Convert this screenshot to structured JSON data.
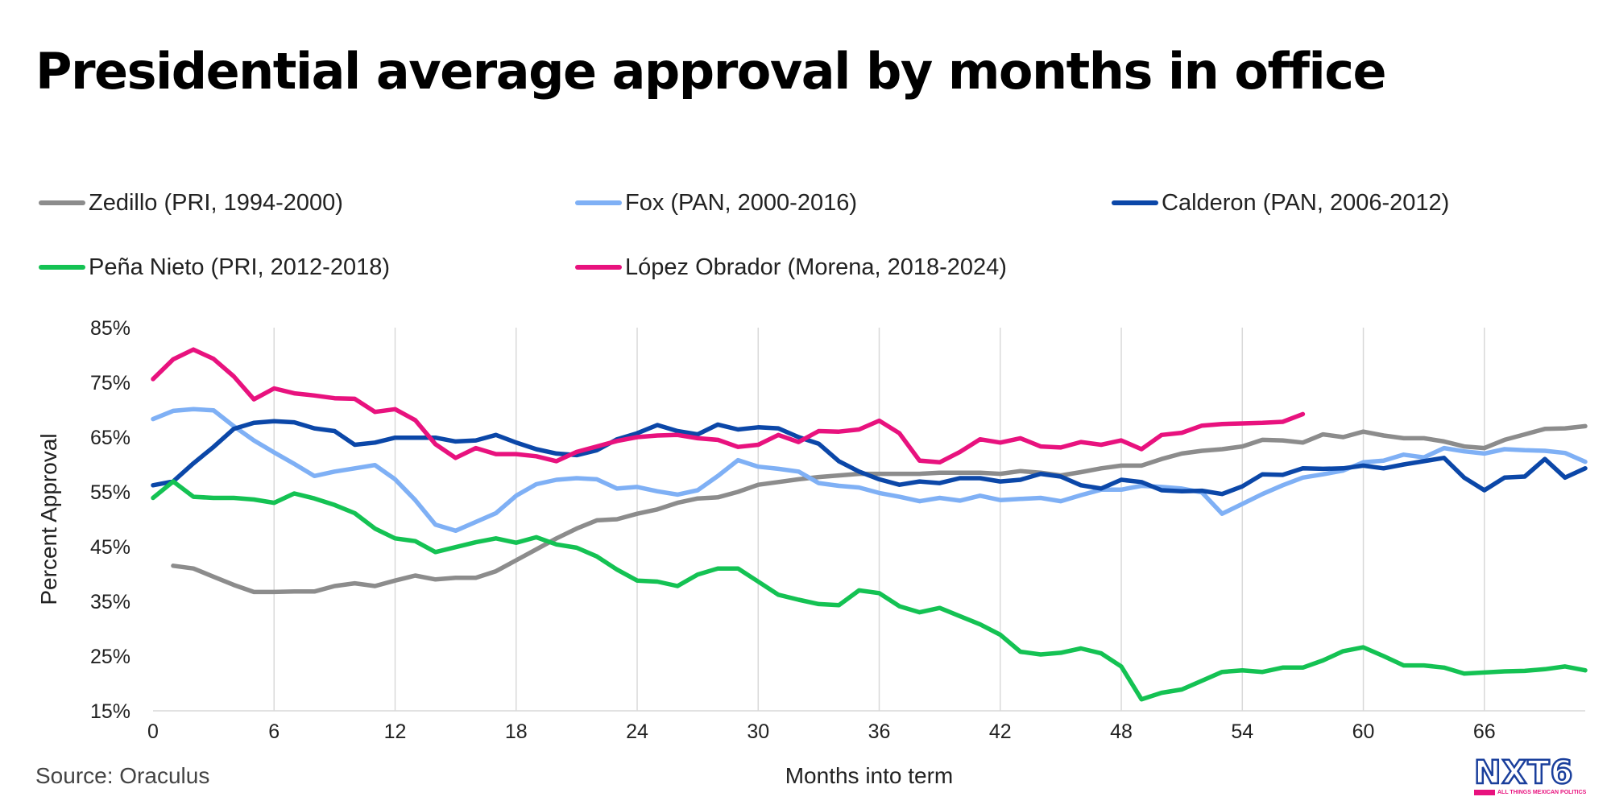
{
  "title": "Presidential average approval by months in office",
  "source": "Source: Oraculus",
  "logo": {
    "name": "NXT6",
    "tagline": "ALL THINGS MEXICAN POLITICS"
  },
  "colors": {
    "zedillo": "#8c8c8c",
    "fox": "#7fb0f5",
    "calderon": "#0b47a8",
    "pena_nieto": "#14c253",
    "lopez_obrador": "#e8127e",
    "grid": "#d9d9d9"
  },
  "chart_data": {
    "type": "line",
    "xlabel": "Months into term",
    "ylabel": "Percent Approval",
    "xlim": [
      0,
      71
    ],
    "ylim": [
      15,
      85
    ],
    "x_ticks": [
      0,
      6,
      12,
      18,
      24,
      30,
      36,
      42,
      48,
      54,
      60,
      66
    ],
    "y_ticks": [
      "85%",
      "75%",
      "65%",
      "55%",
      "45%",
      "35%",
      "25%",
      "15%"
    ],
    "y_tick_values": [
      85,
      75,
      65,
      55,
      45,
      35,
      25,
      15
    ],
    "grid": "vertical",
    "legend_position": "top",
    "series": [
      {
        "name": "Zedillo (PRI, 1994-2000)",
        "color_key": "zedillo",
        "start_month": 1,
        "values": [
          41.5,
          41,
          39.5,
          38,
          36.7,
          36.7,
          36.8,
          36.8,
          37.8,
          38.3,
          37.8,
          38.8,
          39.7,
          39,
          39.3,
          39.3,
          40.5,
          42.5,
          44.5,
          46.5,
          48.3,
          49.8,
          50,
          51,
          51.8,
          53,
          53.8,
          54,
          55,
          56.3,
          56.8,
          57.3,
          57.7,
          58,
          58.3,
          58.3,
          58.3,
          58.3,
          58.5,
          58.5,
          58.5,
          58.3,
          58.8,
          58.5,
          58,
          58.6,
          59.3,
          59.8,
          59.8,
          61,
          62,
          62.5,
          62.8,
          63.3,
          64.5,
          64.4,
          64,
          65.5,
          65,
          66,
          65.3,
          64.8,
          64.8,
          64.2,
          63.3,
          63,
          64.5,
          65.5,
          66.5,
          66.6,
          67
        ]
      },
      {
        "name": "Fox (PAN, 2000-2016)",
        "color_key": "fox",
        "start_month": 0,
        "values": [
          68.3,
          69.8,
          70.1,
          69.9,
          67,
          64.4,
          62.2,
          60.1,
          57.9,
          58.7,
          59.3,
          59.9,
          57.3,
          53.5,
          49,
          47.9,
          49.5,
          51.1,
          54.3,
          56.4,
          57.2,
          57.5,
          57.3,
          55.6,
          55.9,
          55.1,
          54.5,
          55.3,
          57.9,
          60.8,
          59.6,
          59.2,
          58.7,
          56.6,
          56.1,
          55.8,
          54.8,
          54.1,
          53.3,
          53.9,
          53.4,
          54.3,
          53.5,
          53.7,
          53.9,
          53.3,
          54.4,
          55.4,
          55.4,
          56.1,
          55.9,
          55.6,
          54.9,
          51,
          52.8,
          54.6,
          56.2,
          57.6,
          58.2,
          58.9,
          60.4,
          60.7,
          61.8,
          61.3,
          63,
          62.4,
          62,
          62.8,
          62.6,
          62.5,
          62.1,
          60.5
        ]
      },
      {
        "name": "Calderon (PAN, 2006-2012)",
        "color_key": "calderon",
        "start_month": 0,
        "values": [
          56.2,
          56.9,
          60.2,
          63.2,
          66.5,
          67.6,
          67.9,
          67.7,
          66.6,
          66.1,
          63.6,
          64,
          64.9,
          64.9,
          64.9,
          64.2,
          64.4,
          65.4,
          64,
          62.8,
          62,
          61.7,
          62.6,
          64.6,
          65.7,
          67.2,
          66.1,
          65.5,
          67.3,
          66.4,
          66.8,
          66.6,
          65,
          63.8,
          60.6,
          58.7,
          57.3,
          56.3,
          56.9,
          56.6,
          57.5,
          57.5,
          56.9,
          57.2,
          58.3,
          57.8,
          56.2,
          55.6,
          57.2,
          56.8,
          55.3,
          55.1,
          55.2,
          54.6,
          56,
          58.2,
          58.1,
          59.3,
          59.2,
          59.3,
          59.8,
          59.3,
          60,
          60.6,
          61.2,
          57.6,
          55.3,
          57.6,
          57.8,
          61,
          57.6,
          59.3
        ]
      },
      {
        "name": "Peña Nieto (PRI, 2012-2018)",
        "color_key": "pena_nieto",
        "start_month": 0,
        "values": [
          53.9,
          56.9,
          54.1,
          53.9,
          53.9,
          53.6,
          53,
          54.7,
          53.8,
          52.6,
          51.1,
          48.3,
          46.5,
          46,
          44,
          44.9,
          45.8,
          46.5,
          45.7,
          46.7,
          45.4,
          44.8,
          43.2,
          40.8,
          38.8,
          38.6,
          37.8,
          39.9,
          41,
          41,
          38.6,
          36.2,
          35.3,
          34.5,
          34.3,
          37,
          36.5,
          34.1,
          33,
          33.8,
          32.3,
          30.8,
          28.9,
          25.8,
          25.3,
          25.6,
          26.4,
          25.5,
          23.1,
          17.1,
          18.3,
          18.9,
          20.5,
          22.1,
          22.4,
          22.1,
          22.9,
          22.9,
          24.2,
          25.9,
          26.6,
          25,
          23.3,
          23.3,
          22.9,
          21.8,
          22,
          22.2,
          22.3,
          22.6,
          23.1,
          22.4
        ]
      },
      {
        "name": "López Obrador (Morena, 2018-2024)",
        "color_key": "lopez_obrador",
        "start_month": 0,
        "values": [
          75.6,
          79.2,
          81,
          79.3,
          76.1,
          71.9,
          73.9,
          73,
          72.6,
          72.1,
          72,
          69.6,
          70.1,
          68.1,
          63.7,
          61.2,
          63,
          61.9,
          61.9,
          61.5,
          60.6,
          62.3,
          63.3,
          64.3,
          65,
          65.3,
          65.4,
          64.8,
          64.5,
          63.2,
          63.6,
          65.4,
          64.1,
          66.1,
          66,
          66.4,
          68,
          65.7,
          60.7,
          60.4,
          62.3,
          64.6,
          64,
          64.8,
          63.3,
          63.1,
          64.1,
          63.6,
          64.4,
          62.8,
          65.4,
          65.8,
          67.1,
          67.4,
          67.5,
          67.6,
          67.8,
          69.2
        ]
      }
    ]
  }
}
